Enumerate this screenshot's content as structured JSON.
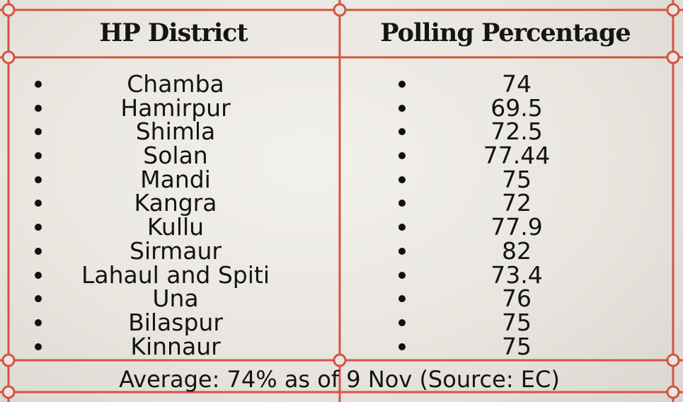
{
  "colors": {
    "frame": "#d35442",
    "text": "#141414",
    "background": "#ebe8e2"
  },
  "chart_data": {
    "type": "table",
    "columns": [
      "HP District",
      "Polling Percentage"
    ],
    "rows": [
      {
        "district": "Chamba",
        "polling": "74"
      },
      {
        "district": "Hamirpur",
        "polling": "69.5"
      },
      {
        "district": "Shimla",
        "polling": "72.5"
      },
      {
        "district": "Solan",
        "polling": "77.44"
      },
      {
        "district": "Mandi",
        "polling": "75"
      },
      {
        "district": "Kangra",
        "polling": "72"
      },
      {
        "district": "Kullu",
        "polling": "77.9"
      },
      {
        "district": "Sirmaur",
        "polling": "82"
      },
      {
        "district": "Lahaul and Spiti",
        "polling": "73.4"
      },
      {
        "district": "Una",
        "polling": "76"
      },
      {
        "district": "Bilaspur",
        "polling": "75"
      },
      {
        "district": "Kinnaur",
        "polling": "75"
      }
    ],
    "footer": "Average: 74% as of 9 Nov (Source: EC)"
  }
}
